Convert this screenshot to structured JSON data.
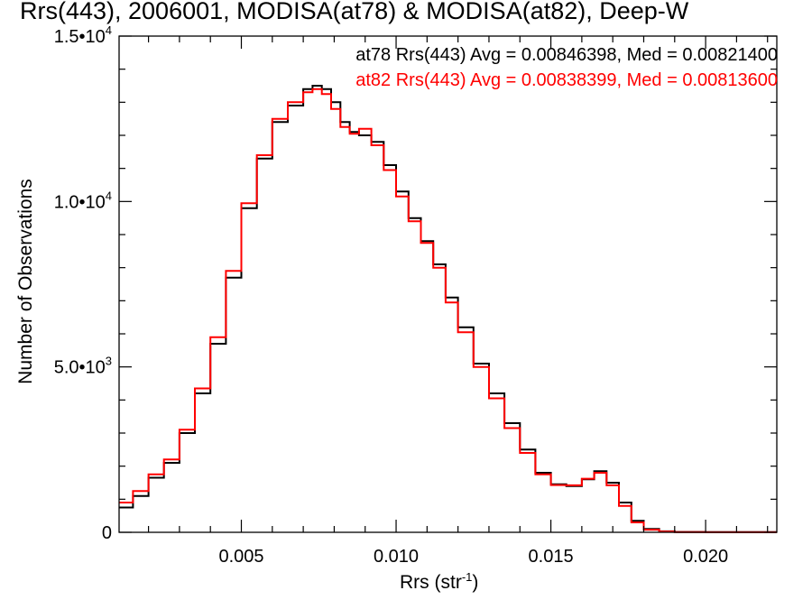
{
  "title": "Rrs(443), 2006001, MODISA(at78) & MODISA(at82), Deep-W",
  "colors": {
    "at78": "#000000",
    "at82": "#ff0000",
    "axis": "#000000"
  },
  "chart_data": {
    "type": "line",
    "step": true,
    "title": "Rrs(443), 2006001, MODISA(at78) & MODISA(at82), Deep-W",
    "xlabel": {
      "main": "Rrs (str",
      "sup": "-1",
      "end": ")"
    },
    "ylabel": "Number of Observations",
    "xlim": [
      0.00105,
      0.0223
    ],
    "ylim": [
      0,
      15000
    ],
    "x_ticks": [
      {
        "value": 0.005,
        "label": "0.005"
      },
      {
        "value": 0.01,
        "label": "0.010"
      },
      {
        "value": 0.015,
        "label": "0.015"
      },
      {
        "value": 0.02,
        "label": "0.020"
      }
    ],
    "y_ticks": [
      {
        "value": 0,
        "label": "0",
        "exp": ""
      },
      {
        "value": 5000,
        "label": "5.0•10",
        "exp": "3"
      },
      {
        "value": 10000,
        "label": "1.0•10",
        "exp": "4"
      },
      {
        "value": 15000,
        "label": "1.5•10",
        "exp": "4"
      }
    ],
    "legend": [
      {
        "label": "at78 Rrs(443) Avg = 0.00846398, Med = 0.00821400",
        "color": "#000000"
      },
      {
        "label": "at82 Rrs(443) Avg = 0.00838399, Med = 0.00813600",
        "color": "#ff0000"
      }
    ],
    "legend_position": "top-right",
    "series": [
      {
        "name": "at78",
        "color": "#000000",
        "x": [
          0.00105,
          0.0015,
          0.002,
          0.0025,
          0.003,
          0.0035,
          0.004,
          0.0045,
          0.005,
          0.0055,
          0.006,
          0.0065,
          0.007,
          0.0073,
          0.0076,
          0.0079,
          0.0082,
          0.0085,
          0.0088,
          0.0092,
          0.0096,
          0.01,
          0.0104,
          0.0108,
          0.0112,
          0.0116,
          0.012,
          0.0125,
          0.013,
          0.0135,
          0.014,
          0.0145,
          0.015,
          0.0155,
          0.016,
          0.0164,
          0.0168,
          0.0172,
          0.0176,
          0.018,
          0.0185,
          0.019,
          0.02,
          0.021,
          0.022,
          0.0223
        ],
        "y": [
          750,
          1100,
          1650,
          2100,
          3000,
          4200,
          5700,
          7700,
          9800,
          11300,
          12400,
          12900,
          13400,
          13500,
          13400,
          13000,
          12400,
          12100,
          12000,
          11800,
          11100,
          10300,
          9500,
          8800,
          8100,
          7100,
          6200,
          5100,
          4200,
          3300,
          2500,
          1800,
          1450,
          1400,
          1600,
          1850,
          1500,
          900,
          350,
          100,
          30,
          10,
          5,
          5,
          5,
          5
        ]
      },
      {
        "name": "at82",
        "color": "#ff0000",
        "x": [
          0.00105,
          0.0015,
          0.002,
          0.0025,
          0.003,
          0.0035,
          0.004,
          0.0045,
          0.005,
          0.0055,
          0.006,
          0.0065,
          0.007,
          0.0073,
          0.0076,
          0.0079,
          0.0082,
          0.0085,
          0.0088,
          0.0092,
          0.0096,
          0.01,
          0.0104,
          0.0108,
          0.0112,
          0.0116,
          0.012,
          0.0125,
          0.013,
          0.0135,
          0.014,
          0.0145,
          0.015,
          0.0155,
          0.016,
          0.0164,
          0.0168,
          0.0172,
          0.0176,
          0.018,
          0.0185,
          0.019,
          0.02,
          0.021,
          0.022,
          0.0223
        ],
        "y": [
          900,
          1250,
          1750,
          2200,
          3100,
          4350,
          5900,
          7900,
          9950,
          11400,
          12500,
          13000,
          13300,
          13400,
          13250,
          12800,
          12250,
          12050,
          12200,
          11700,
          10950,
          10150,
          9400,
          8750,
          8000,
          6950,
          6050,
          5000,
          4050,
          3150,
          2400,
          1750,
          1430,
          1420,
          1620,
          1800,
          1420,
          800,
          300,
          80,
          25,
          8,
          4,
          4,
          4,
          4
        ]
      }
    ]
  }
}
